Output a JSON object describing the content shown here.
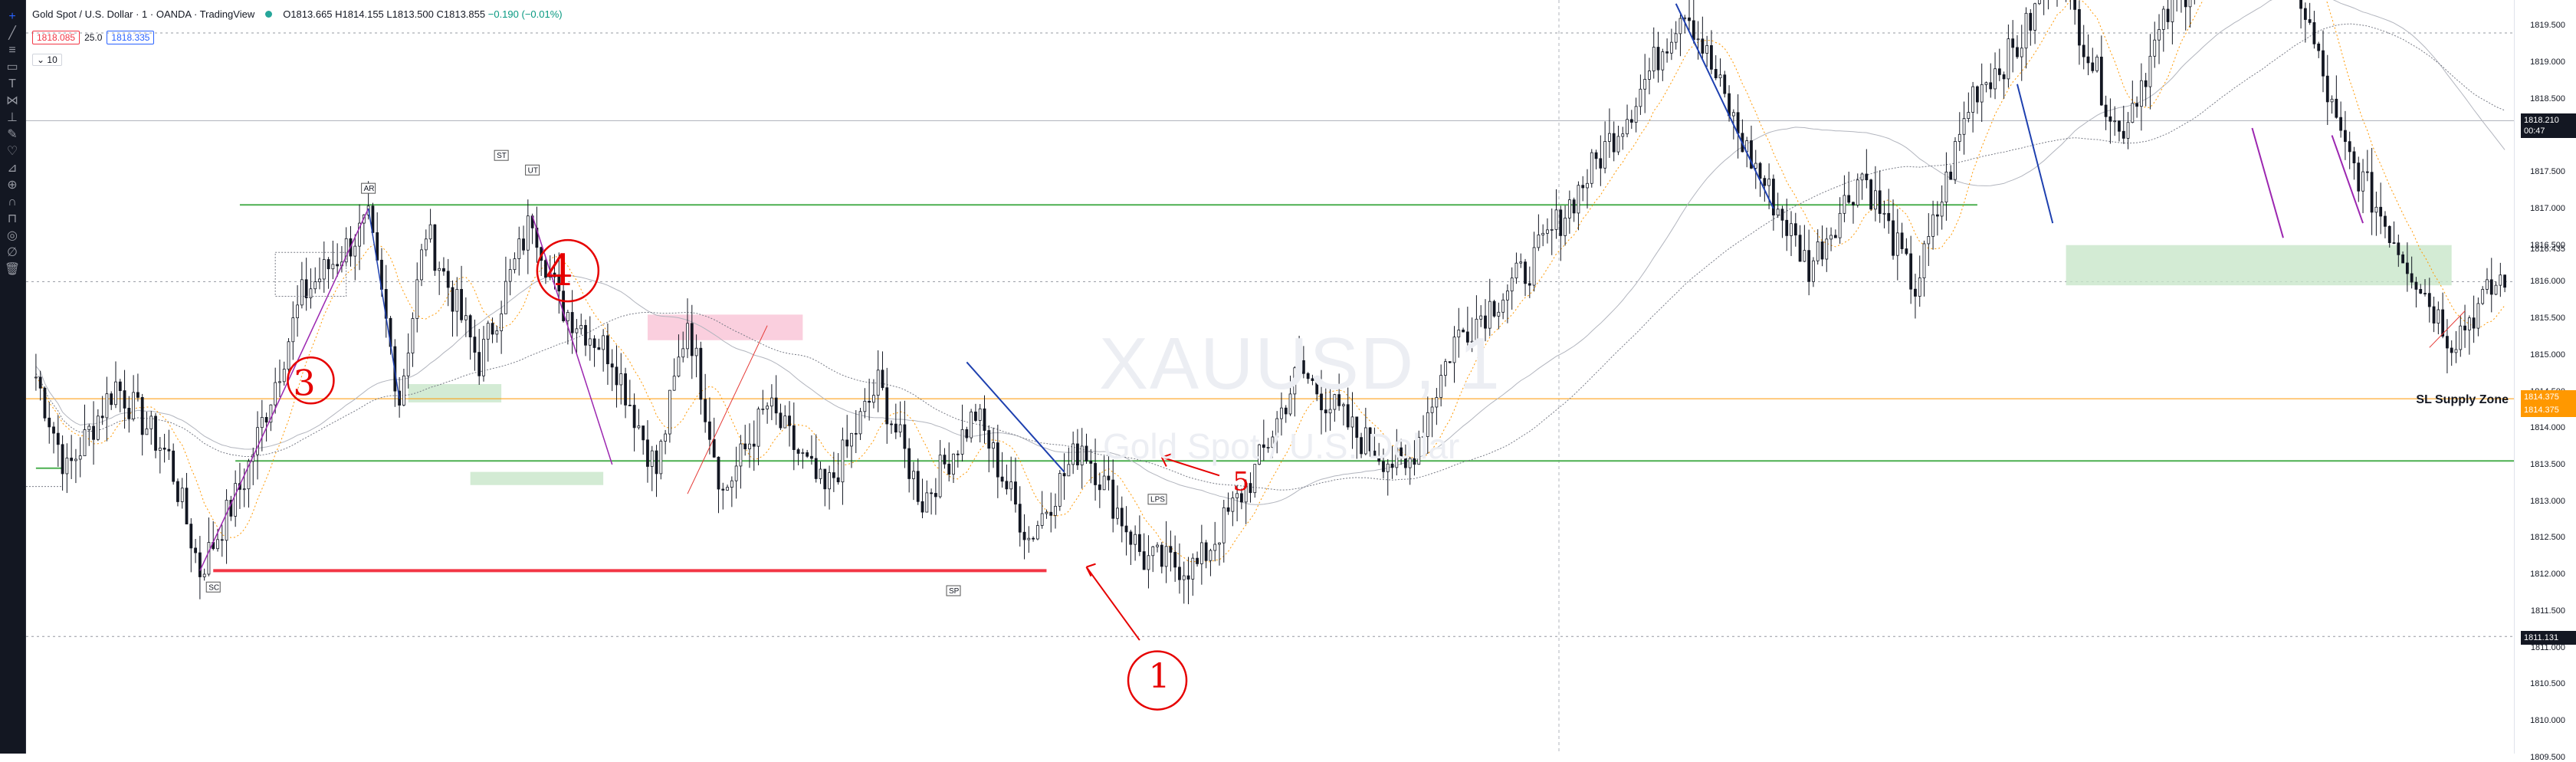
{
  "toolbar": {
    "tools": [
      "crosshair-icon",
      "trendline-icon",
      "horizontal-lines-icon",
      "rectangle-icon",
      "text-icon",
      "pattern-icon",
      "fib-icon",
      "brush-icon",
      "heart-icon",
      "ruler-icon",
      "zoom-icon",
      "magnet-icon",
      "lock-icon",
      "eye-icon",
      "hide-icon",
      "trash-icon"
    ]
  },
  "legend": {
    "title": "Gold Spot / U.S. Dollar · 1 · OANDA · TradingView",
    "open": "O1813.665",
    "high": "H1814.155",
    "low": "L1813.500",
    "close": "C1813.855",
    "change": "−0.190 (−0.01%)"
  },
  "quote": {
    "sell": "1818.085",
    "spread": "25.0",
    "buy": "1818.335"
  },
  "volume_label": "10",
  "watermark": {
    "symbol": "XAUUSD, 1",
    "description": "Gold Spot / U.S. Dollar"
  },
  "annotations": {
    "supply_zone": "SL Supply Zone",
    "wyckoff": [
      "SC",
      "AR",
      "ST",
      "UT",
      "SP",
      "LPS"
    ],
    "numbers": [
      "1",
      "3",
      "4",
      "5"
    ]
  },
  "price_axis": {
    "labels": [
      "1819.500",
      "1819.000",
      "1818.500",
      "1818.000",
      "1817.500",
      "1817.000",
      "1816.500",
      "1816.000",
      "1815.500",
      "1815.000",
      "1814.500",
      "1814.000",
      "1813.500",
      "1813.000",
      "1812.500",
      "1812.000",
      "1811.500",
      "1811.000",
      "1810.500",
      "1810.000",
      "1809.500"
    ],
    "current_price": "1818.210",
    "countdown": "00:47",
    "line_price_1": "1814.375",
    "line_price_2": "1814.375",
    "right_label": "1816.435",
    "marker_price": "1811.131"
  },
  "chart_data": {
    "type": "candlestick",
    "symbol": "XAUUSD",
    "interval": "1",
    "price_range": [
      1809.4,
      1819.9
    ],
    "anchors": [
      [
        0,
        1814.7
      ],
      [
        7,
        1813.4
      ],
      [
        18,
        1814.6
      ],
      [
        30,
        1813.6
      ],
      [
        37,
        1812.05
      ],
      [
        47,
        1813.3
      ],
      [
        60,
        1815.8
      ],
      [
        75,
        1816.8
      ],
      [
        82,
        1814.4
      ],
      [
        88,
        1816.7
      ],
      [
        100,
        1814.9
      ],
      [
        112,
        1816.9
      ],
      [
        118,
        1815.7
      ],
      [
        130,
        1815.0
      ],
      [
        140,
        1813.4
      ],
      [
        147,
        1815.5
      ],
      [
        155,
        1813.1
      ],
      [
        165,
        1814.3
      ],
      [
        178,
        1813.1
      ],
      [
        190,
        1814.6
      ],
      [
        200,
        1813.0
      ],
      [
        212,
        1814.2
      ],
      [
        224,
        1812.5
      ],
      [
        236,
        1813.8
      ],
      [
        250,
        1812.2
      ],
      [
        262,
        1812.1
      ],
      [
        275,
        1813.4
      ],
      [
        285,
        1814.8
      ],
      [
        298,
        1813.9
      ],
      [
        309,
        1813.4
      ],
      [
        320,
        1815.2
      ],
      [
        337,
        1816.2
      ],
      [
        360,
        1818.4
      ],
      [
        372,
        1819.8
      ],
      [
        385,
        1817.9
      ],
      [
        400,
        1816.2
      ],
      [
        412,
        1817.5
      ],
      [
        424,
        1815.9
      ],
      [
        437,
        1818.6
      ],
      [
        447,
        1819.2
      ],
      [
        456,
        1820.3
      ],
      [
        470,
        1818.0
      ],
      [
        482,
        1819.8
      ],
      [
        494,
        1820.6
      ],
      [
        505,
        1821.2
      ],
      [
        520,
        1817.9
      ],
      [
        532,
        1816.6
      ],
      [
        545,
        1815.2
      ],
      [
        557,
        1816.1
      ]
    ],
    "candles": 558
  }
}
